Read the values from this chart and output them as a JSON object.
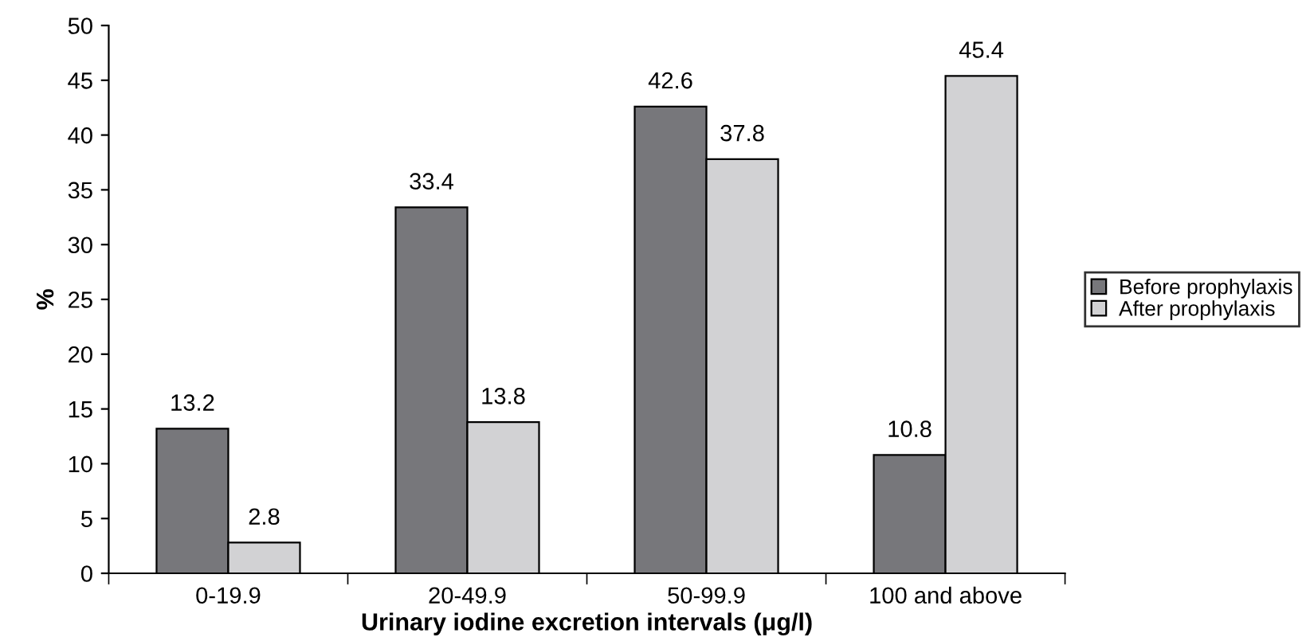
{
  "chart_data": {
    "type": "bar",
    "xlabel": "Urinary iodine excretion intervals (μg/l)",
    "ylabel": "%",
    "categories": [
      "0-19.9",
      "20-49.9",
      "50-99.9",
      "100 and above"
    ],
    "series": [
      {
        "name": "Before prophylaxis",
        "color": "#77777b",
        "values": [
          13.2,
          33.4,
          42.6,
          10.8
        ]
      },
      {
        "name": "After prophylaxis",
        "color": "#d2d2d4",
        "values": [
          2.8,
          13.8,
          37.8,
          45.4
        ]
      }
    ],
    "ylim": [
      0,
      50
    ],
    "yticks": [
      0,
      5,
      10,
      15,
      20,
      25,
      30,
      35,
      40,
      45,
      50
    ],
    "grid": false,
    "legend": "right",
    "data_labels": true
  }
}
